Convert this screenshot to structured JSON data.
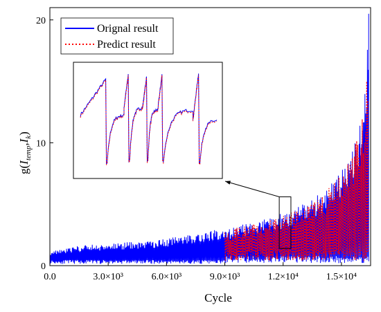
{
  "chart_data": {
    "type": "line",
    "xlabel": "Cycle",
    "ylabel": "g(I_temp, I_k)",
    "xlim": [
      0,
      16500
    ],
    "ylim": [
      0,
      21
    ],
    "x_ticks": [
      {
        "value": 0,
        "label": "0.0"
      },
      {
        "value": 3000,
        "label": "3.0×10³"
      },
      {
        "value": 6000,
        "label": "6.0×10³"
      },
      {
        "value": 9000,
        "label": "9.0×10³"
      },
      {
        "value": 12000,
        "label": "1.2×10⁴"
      },
      {
        "value": 15000,
        "label": "1.5×10⁴"
      }
    ],
    "y_ticks": [
      {
        "value": 0,
        "label": "0"
      },
      {
        "value": 10,
        "label": "10"
      },
      {
        "value": 20,
        "label": "20"
      }
    ],
    "legend_position": "top-left",
    "series": [
      {
        "name": "Orignal result",
        "color": "#0000ff",
        "style": "solid",
        "x": [
          0,
          1000,
          2000,
          3000,
          4000,
          5000,
          6000,
          7000,
          8000,
          9000,
          10000,
          11000,
          12000,
          13000,
          14000,
          15000,
          15500,
          16000,
          16200,
          16400
        ],
        "y": [
          1.2,
          1.5,
          1.7,
          1.8,
          1.9,
          2.0,
          2.2,
          2.5,
          2.8,
          3.0,
          3.4,
          3.8,
          4.3,
          5.0,
          6.0,
          8.0,
          9.5,
          12.0,
          15.0,
          20.5
        ]
      },
      {
        "name": "Predict result",
        "color": "#ff0000",
        "style": "dotted",
        "x": [
          9000,
          10000,
          11000,
          12000,
          13000,
          14000,
          15000,
          15500,
          16000,
          16200,
          16400
        ],
        "y": [
          3.0,
          3.4,
          3.8,
          4.3,
          5.0,
          6.0,
          8.0,
          9.5,
          12.0,
          15.0,
          19.5
        ]
      }
    ],
    "annotation": {
      "type": "zoom-inset",
      "x_range": [
        11800,
        12400
      ],
      "y_range": [
        1.4,
        5.6
      ],
      "arrow": true
    }
  }
}
